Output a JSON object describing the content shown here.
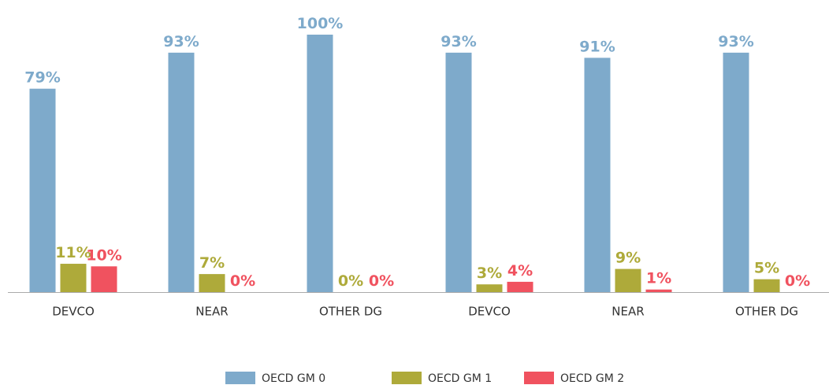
{
  "chart_data": {
    "type": "bar",
    "categories": [
      "DEVCO",
      "NEAR",
      "OTHER DG",
      "DEVCO",
      "NEAR",
      "OTHER DG"
    ],
    "series": [
      {
        "name": "OECD GM 0",
        "color": "#7eaacb",
        "values": [
          79,
          93,
          100,
          93,
          91,
          93
        ],
        "value_labels": [
          "79%",
          "93%",
          "100%",
          "93%",
          "91%",
          "93%"
        ]
      },
      {
        "name": "OECD GM 1",
        "color": "#aeaa3a",
        "values": [
          11,
          7,
          0,
          3,
          9,
          5
        ],
        "value_labels": [
          "11%",
          "7%",
          "0%",
          "3%",
          "9%",
          "5%"
        ]
      },
      {
        "name": "OECD GM 2",
        "color": "#f0525f",
        "values": [
          10,
          0,
          0,
          4,
          1,
          0
        ],
        "value_labels": [
          "10%",
          "0%",
          "0%",
          "4%",
          "1%",
          "0%"
        ]
      }
    ],
    "legend": "bottom"
  }
}
